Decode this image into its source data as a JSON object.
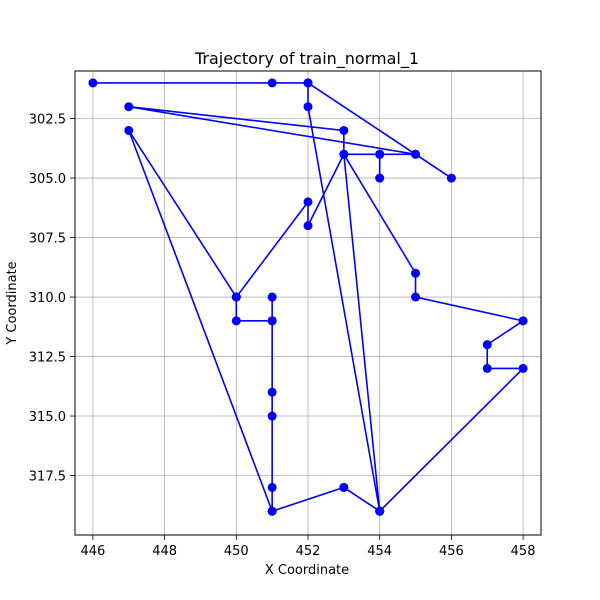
{
  "chart_data": {
    "type": "line",
    "title": "Trajectory of train_normal_1",
    "xlabel": "X Coordinate",
    "ylabel": "Y Coordinate",
    "xlim": [
      445.5,
      458.5
    ],
    "ylim": [
      300.5,
      320.0
    ],
    "y_inverted": true,
    "grid": true,
    "xticks": [
      446,
      448,
      450,
      452,
      454,
      456,
      458
    ],
    "xtick_labels": [
      "446",
      "448",
      "450",
      "452",
      "454",
      "456",
      "458"
    ],
    "yticks": [
      302.5,
      305.0,
      307.5,
      310.0,
      312.5,
      315.0,
      317.5
    ],
    "ytick_labels": [
      "302.5",
      "305.0",
      "307.5",
      "310.0",
      "312.5",
      "315.0",
      "317.5"
    ],
    "series": [
      {
        "color": "#0000ff",
        "marker": "circle",
        "points": [
          [
            446,
            301
          ],
          [
            451,
            301
          ],
          [
            452,
            301
          ],
          [
            452,
            302
          ],
          [
            454,
            319
          ],
          [
            453,
            318
          ],
          [
            451,
            319
          ],
          [
            451,
            318
          ],
          [
            451,
            315
          ],
          [
            451,
            314
          ],
          [
            451,
            311
          ],
          [
            451,
            310
          ],
          [
            451,
            311
          ],
          [
            450,
            311
          ],
          [
            450,
            310
          ],
          [
            447,
            303
          ],
          [
            451,
            319
          ],
          [
            453,
            318
          ],
          [
            454,
            319
          ],
          [
            453,
            304
          ],
          [
            453,
            303
          ],
          [
            447,
            302
          ],
          [
            455,
            304
          ],
          [
            456,
            305
          ],
          [
            452,
            301
          ],
          [
            455,
            304
          ],
          [
            454,
            304
          ],
          [
            454,
            305
          ],
          [
            454,
            304
          ],
          [
            453,
            304
          ],
          [
            455,
            309
          ],
          [
            455,
            310
          ],
          [
            458,
            311
          ],
          [
            457,
            312
          ],
          [
            457,
            313
          ],
          [
            458,
            313
          ],
          [
            454,
            319
          ],
          [
            453,
            304
          ],
          [
            452,
            307
          ],
          [
            452,
            306
          ],
          [
            450,
            310
          ]
        ]
      }
    ]
  }
}
